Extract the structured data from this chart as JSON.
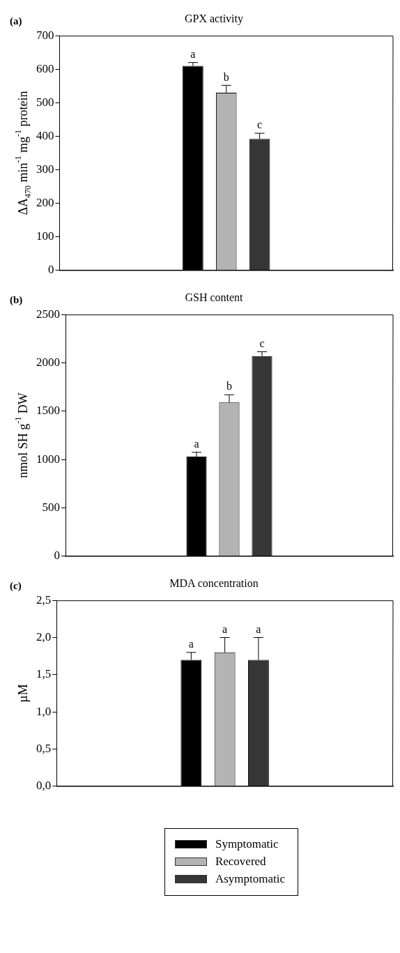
{
  "chart_data": [
    {
      "type": "bar",
      "title": "GPX activity",
      "ylabel": "ΔA$_{470}$ min$^{-1}$ mg$^{-1}$ protein",
      "annotations": [
        "(a)"
      ],
      "categories": [
        null
      ],
      "tick_labels": "y",
      "ylim": [
        0,
        700
      ],
      "yticks": [
        0,
        100,
        200,
        300,
        400,
        500,
        600,
        700
      ],
      "series": [
        {
          "color": "#000000",
          "values": [
            610
          ],
          "errors": [
            [
              610,
              620
            ]
          ],
          "value_labels": [
            "a"
          ]
        },
        {
          "color": "#b3b3b3",
          "values": [
            530
          ],
          "errors": [
            [
              530,
              552
            ]
          ],
          "value_labels": [
            "b"
          ]
        },
        {
          "color": "#363636",
          "values": [
            392
          ],
          "errors": [
            [
              392,
              409
            ]
          ],
          "value_labels": [
            "c"
          ]
        }
      ]
    },
    {
      "type": "bar",
      "title": "GSH content",
      "ylabel": "nmol SH g$^{-1}$ DW",
      "annotations": [
        "(b)"
      ],
      "categories": [
        null
      ],
      "tick_labels": "y",
      "ylim": [
        0,
        2500
      ],
      "yticks": [
        0,
        500,
        1000,
        1500,
        2000,
        2500
      ],
      "series": [
        {
          "color": "#000000",
          "values": [
            1030
          ],
          "errors": [
            [
              1030,
              1075
            ]
          ],
          "value_labels": [
            "a"
          ]
        },
        {
          "color": "#b3b3b3",
          "values": [
            1590
          ],
          "errors": [
            [
              1590,
              1670
            ]
          ],
          "value_labels": [
            "b"
          ]
        },
        {
          "color": "#363636",
          "values": [
            2070
          ],
          "errors": [
            [
              2070,
              2115
            ]
          ],
          "value_labels": [
            "c"
          ]
        }
      ]
    },
    {
      "type": "bar",
      "title": "MDA concentration",
      "ylabel": "µM",
      "annotations": [
        "(c)"
      ],
      "categories": [
        null
      ],
      "tick_labels": "y",
      "legend": "bottom",
      "ylim": [
        0,
        2.5
      ],
      "yticks": [
        {
          "value": 0,
          "label": "0,0"
        },
        {
          "value": 0.5,
          "label": "0,5"
        },
        {
          "value": 1,
          "label": "1,0"
        },
        {
          "value": 1.5,
          "label": "1,5"
        },
        {
          "value": 2,
          "label": "2,0"
        },
        {
          "value": 2.5,
          "label": "2,5"
        }
      ],
      "series": [
        {
          "name": "Symptomatic",
          "color": "#000000",
          "values": [
            1.7
          ],
          "errors": [
            [
              1.7,
              1.8
            ]
          ],
          "value_labels": [
            "a"
          ]
        },
        {
          "name": "Recovered",
          "color": "#b3b3b3",
          "values": [
            1.8
          ],
          "errors": [
            [
              1.8,
              2.0
            ]
          ],
          "value_labels": [
            "a"
          ]
        },
        {
          "name": "Asymptomatic",
          "color": "#363636",
          "values": [
            1.7
          ],
          "errors": [
            [
              1.7,
              2.0
            ]
          ],
          "value_labels": [
            "a"
          ]
        }
      ]
    }
  ]
}
